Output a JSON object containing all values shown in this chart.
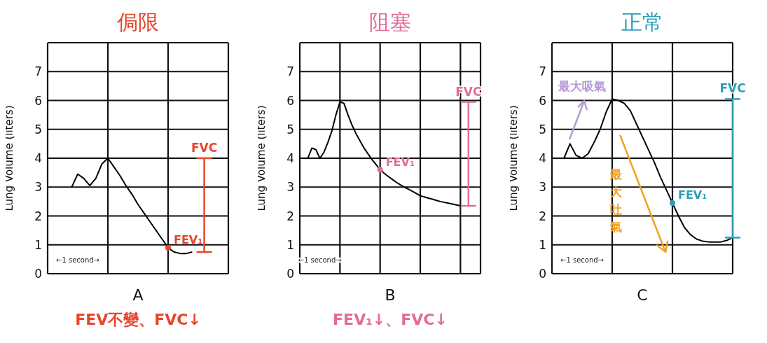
{
  "chart_data": [
    {
      "type": "line",
      "title": "侷限",
      "xlabel": "A",
      "ylabel": "Lung Volume (liters)",
      "ylim": [
        0,
        8
      ],
      "yticks": [
        0,
        1,
        2,
        3,
        4,
        5,
        6,
        7
      ],
      "grid": true,
      "tick_labels": "y",
      "marker": "none",
      "line_style": "solid",
      "categories": [
        null,
        null,
        null,
        null,
        null,
        null,
        null,
        null,
        null,
        null,
        null,
        null,
        null,
        null,
        null,
        null,
        null,
        null,
        null,
        null,
        null,
        null,
        null,
        null,
        null,
        null,
        null,
        null,
        null,
        null,
        null
      ],
      "series": [
        {
          "color": "#000000",
          "values": [
            null,
            null,
            null,
            null,
            3.0,
            3.45,
            3.3,
            3.05,
            3.3,
            3.8,
            4.0,
            3.7,
            3.4,
            3.05,
            2.75,
            2.4,
            2.1,
            1.8,
            1.5,
            1.2,
            0.9,
            0.75,
            0.7,
            0.7,
            0.75,
            null,
            null,
            null,
            null,
            null,
            null
          ]
        }
      ],
      "subtitle": "FEV不變、FVC↓",
      "annotations": [
        "←1 second→",
        "FEV₁",
        "FVC"
      ]
    },
    {
      "type": "line",
      "title": "阻塞",
      "xlabel": "B",
      "ylabel": "Lung Volume (liters)",
      "ylim": [
        0,
        8
      ],
      "yticks": [
        0,
        1,
        2,
        3,
        4,
        5,
        6,
        7
      ],
      "grid": true,
      "tick_labels": "y",
      "marker": "none",
      "line_style": "solid",
      "categories": [
        null,
        null,
        null,
        null,
        null,
        null,
        null,
        null,
        null,
        null,
        null,
        null,
        null,
        null,
        null,
        null,
        null,
        null,
        null,
        null,
        null,
        null,
        null,
        null,
        null,
        null,
        null,
        null,
        null,
        null,
        null,
        null,
        null,
        null,
        null,
        null,
        null,
        null,
        null,
        null,
        null,
        null,
        null,
        null,
        null,
        null
      ],
      "series": [
        {
          "color": "#000000",
          "values": [
            null,
            4.0,
            4.0,
            4.35,
            4.3,
            4.0,
            4.2,
            4.55,
            4.95,
            5.5,
            5.95,
            5.9,
            5.5,
            5.15,
            4.85,
            4.6,
            4.35,
            4.15,
            3.95,
            3.78,
            3.6,
            3.48,
            3.37,
            3.27,
            3.17,
            3.08,
            3.0,
            2.93,
            2.86,
            2.78,
            2.7,
            2.66,
            2.62,
            2.58,
            2.54,
            2.5,
            2.47,
            2.44,
            2.41,
            2.38,
            2.35,
            null,
            null,
            null,
            null,
            null
          ]
        }
      ],
      "subtitle": "FEV₁↓、FVC↓",
      "annotations": [
        "←1 second→",
        "FEV₁",
        "FVC"
      ]
    },
    {
      "type": "line",
      "title": "正常",
      "xlabel": "C",
      "ylabel": "Lung Volume (liters)",
      "ylim": [
        0,
        8
      ],
      "yticks": [
        0,
        1,
        2,
        3,
        4,
        5,
        6,
        7
      ],
      "grid": true,
      "tick_labels": "y",
      "marker": "none",
      "line_style": "solid",
      "categories": [
        null,
        null,
        null,
        null,
        null,
        null,
        null,
        null,
        null,
        null,
        null,
        null,
        null,
        null,
        null,
        null,
        null,
        null,
        null,
        null,
        null,
        null,
        null,
        null,
        null,
        null,
        null,
        null,
        null,
        null,
        null
      ],
      "series": [
        {
          "color": "#000000",
          "values": [
            null,
            null,
            4.0,
            4.5,
            4.1,
            4.0,
            4.15,
            4.55,
            5.0,
            5.6,
            6.05,
            6.0,
            5.9,
            5.65,
            5.2,
            4.75,
            4.3,
            3.85,
            3.35,
            2.9,
            2.45,
            2.0,
            1.6,
            1.35,
            1.2,
            1.13,
            1.1,
            1.1,
            1.1,
            1.15,
            1.25
          ]
        }
      ],
      "annotations": [
        "←1 second→",
        "FEV₁",
        "FVC",
        "最大吸氣",
        "最大吐氣"
      ]
    }
  ]
}
